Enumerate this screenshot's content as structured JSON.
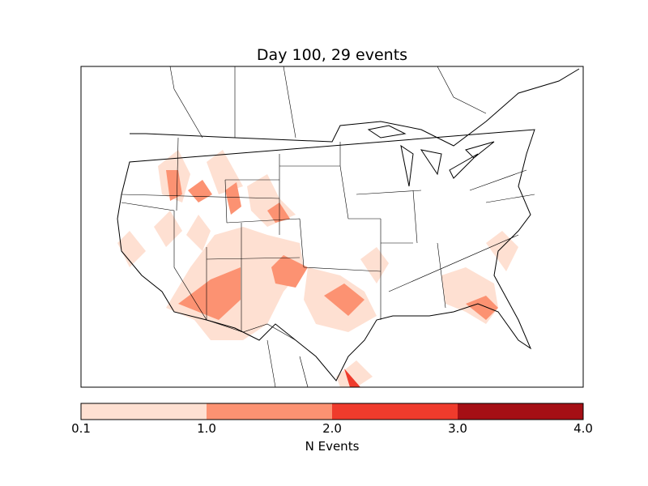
{
  "chart_data": {
    "type": "heatmap",
    "title": "Day 100, 29 events",
    "colorbar": {
      "label": "N Events",
      "ticks": [
        "0.1",
        "1.0",
        "2.0",
        "3.0",
        "4.0"
      ],
      "bins": [
        {
          "min": 0.1,
          "max": 1.0,
          "color": "#fee0d2"
        },
        {
          "min": 1.0,
          "max": 2.0,
          "color": "#fc9272"
        },
        {
          "min": 2.0,
          "max": 3.0,
          "color": "#ef3b2c"
        },
        {
          "min": 3.0,
          "max": 4.0,
          "color": "#a50f15"
        }
      ],
      "orientation": "horizontal",
      "placement": "bottom"
    },
    "region": "Contiguous United States",
    "day": 100,
    "events": 29
  }
}
